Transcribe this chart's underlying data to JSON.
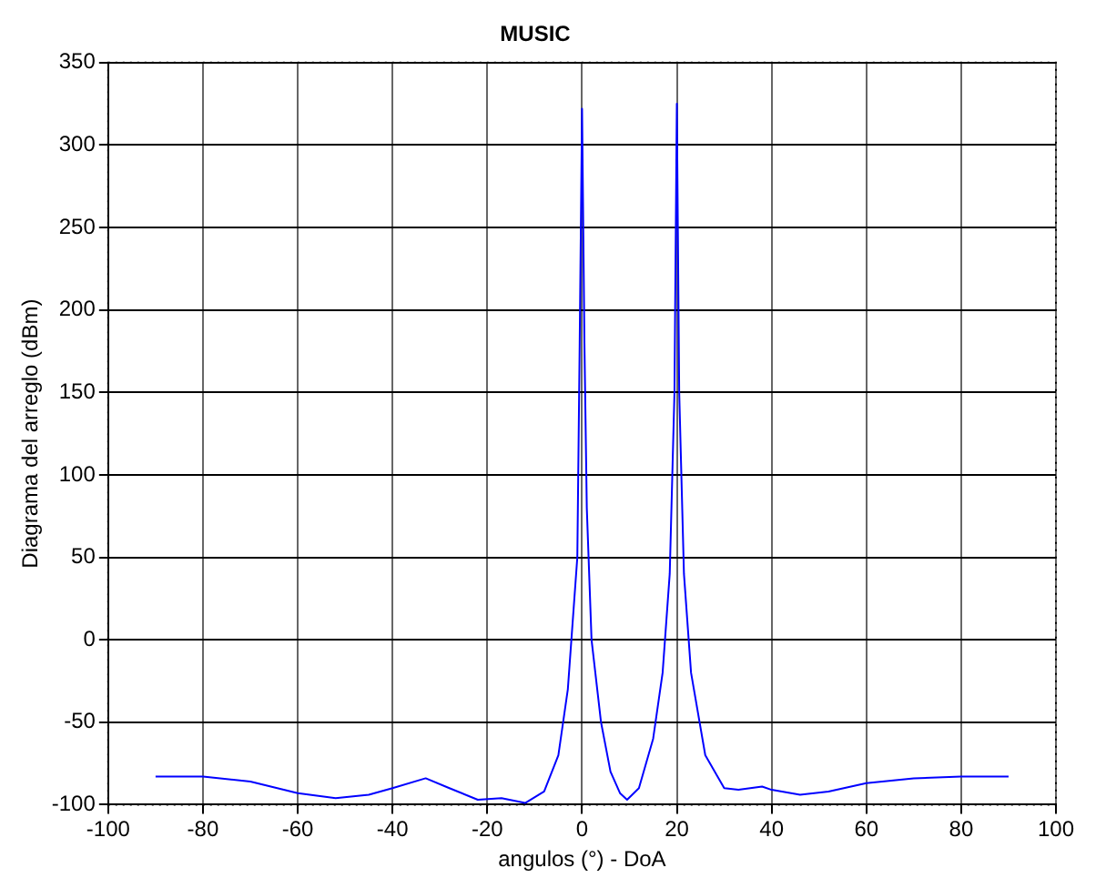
{
  "chart_data": {
    "type": "line",
    "title": "MUSIC",
    "xlabel": "angulos (°) - DoA",
    "ylabel": "Diagrama del arreglo (dBm)",
    "x": [
      -90,
      -80,
      -70,
      -60,
      -52,
      -45,
      -40,
      -33,
      -28,
      -22,
      -17,
      -12,
      -8,
      -5,
      -3,
      -1,
      -0.5,
      0,
      0.5,
      1,
      2,
      4,
      6,
      8,
      9.5,
      12,
      15,
      17,
      18.5,
      19.5,
      20,
      20.5,
      21.5,
      23,
      26,
      30,
      33,
      38,
      40,
      46,
      52,
      60,
      70,
      80,
      90
    ],
    "series": [
      {
        "color": "#0000ff",
        "values": [
          -83,
          -83,
          -86,
          -93,
          -96,
          -94,
          -90,
          -84,
          -90,
          -97,
          -96,
          -99,
          -92,
          -70,
          -30,
          50,
          180,
          322,
          180,
          80,
          0,
          -50,
          -80,
          -93,
          -97,
          -90,
          -60,
          -20,
          40,
          150,
          325,
          150,
          40,
          -20,
          -70,
          -90,
          -91,
          -89,
          -91,
          -94,
          -92,
          -87,
          -84,
          -83,
          -83
        ]
      }
    ],
    "xlim": [
      -100,
      100
    ],
    "xticks": [
      -100,
      -80,
      -60,
      -40,
      -20,
      0,
      20,
      40,
      60,
      80,
      100
    ],
    "ylim": [
      -100,
      350
    ],
    "yticks": [
      -100,
      -50,
      0,
      50,
      100,
      150,
      200,
      250,
      300,
      350
    ],
    "grid": true,
    "legend": false,
    "marker": "none",
    "line_style": "solid"
  }
}
